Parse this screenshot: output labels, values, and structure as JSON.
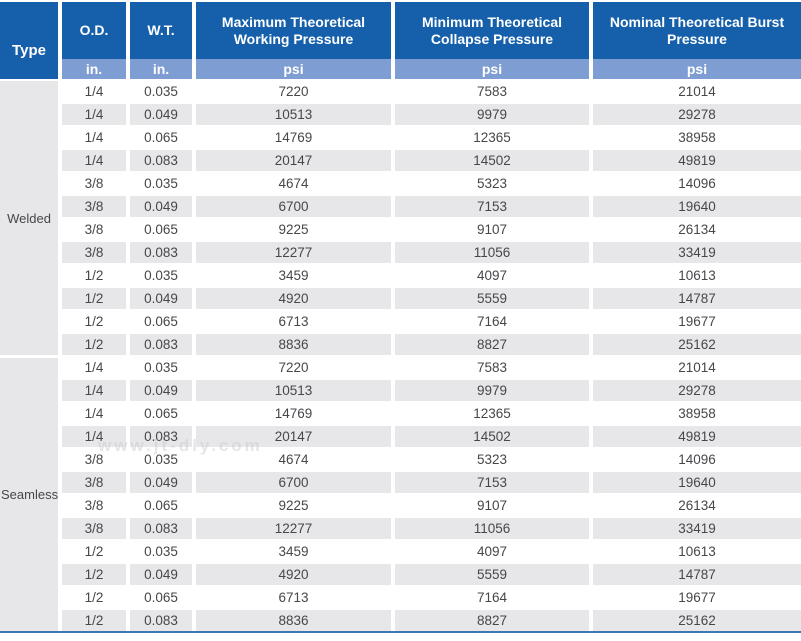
{
  "table": {
    "headers": {
      "type": "Type",
      "od": "O.D.",
      "wt": "W.T.",
      "max_working": "Maximum Theoretical Working Pressure",
      "min_collapse": "Minimum Theoretical Collapse Pressure",
      "burst": "Nominal Theoretical Burst Pressure"
    },
    "units": {
      "od": "in.",
      "wt": "in.",
      "max_working": "psi",
      "min_collapse": "psi",
      "burst": "psi"
    },
    "sections": [
      {
        "type": "Welded",
        "rows": [
          [
            "1/4",
            "0.035",
            "7220",
            "7583",
            "21014"
          ],
          [
            "1/4",
            "0.049",
            "10513",
            "9979",
            "29278"
          ],
          [
            "1/4",
            "0.065",
            "14769",
            "12365",
            "38958"
          ],
          [
            "1/4",
            "0.083",
            "20147",
            "14502",
            "49819"
          ],
          [
            "3/8",
            "0.035",
            "4674",
            "5323",
            "14096"
          ],
          [
            "3/8",
            "0.049",
            "6700",
            "7153",
            "19640"
          ],
          [
            "3/8",
            "0.065",
            "9225",
            "9107",
            "26134"
          ],
          [
            "3/8",
            "0.083",
            "12277",
            "11056",
            "33419"
          ],
          [
            "1/2",
            "0.035",
            "3459",
            "4097",
            "10613"
          ],
          [
            "1/2",
            "0.049",
            "4920",
            "5559",
            "14787"
          ],
          [
            "1/2",
            "0.065",
            "6713",
            "7164",
            "19677"
          ],
          [
            "1/2",
            "0.083",
            "8836",
            "8827",
            "25162"
          ]
        ]
      },
      {
        "type": "Seamless",
        "rows": [
          [
            "1/4",
            "0.035",
            "7220",
            "7583",
            "21014"
          ],
          [
            "1/4",
            "0.049",
            "10513",
            "9979",
            "29278"
          ],
          [
            "1/4",
            "0.065",
            "14769",
            "12365",
            "38958"
          ],
          [
            "1/4",
            "0.083",
            "20147",
            "14502",
            "49819"
          ],
          [
            "3/8",
            "0.035",
            "4674",
            "5323",
            "14096"
          ],
          [
            "3/8",
            "0.049",
            "6700",
            "7153",
            "19640"
          ],
          [
            "3/8",
            "0.065",
            "9225",
            "9107",
            "26134"
          ],
          [
            "3/8",
            "0.083",
            "12277",
            "11056",
            "33419"
          ],
          [
            "1/2",
            "0.035",
            "3459",
            "4097",
            "10613"
          ],
          [
            "1/2",
            "0.049",
            "4920",
            "5559",
            "14787"
          ],
          [
            "1/2",
            "0.065",
            "6713",
            "7164",
            "19677"
          ],
          [
            "1/2",
            "0.083",
            "8836",
            "8827",
            "25162"
          ]
        ]
      }
    ]
  },
  "watermark": "www.jt-dly.com",
  "colors": {
    "header_blue": "#1660AB",
    "subheader_blue": "#7E9DD2",
    "stripe_gray": "#E7E7E9",
    "bottom_line_blue": "#3F77B6",
    "text_dark": "#47474B",
    "header_text": "#FFFFFF"
  }
}
